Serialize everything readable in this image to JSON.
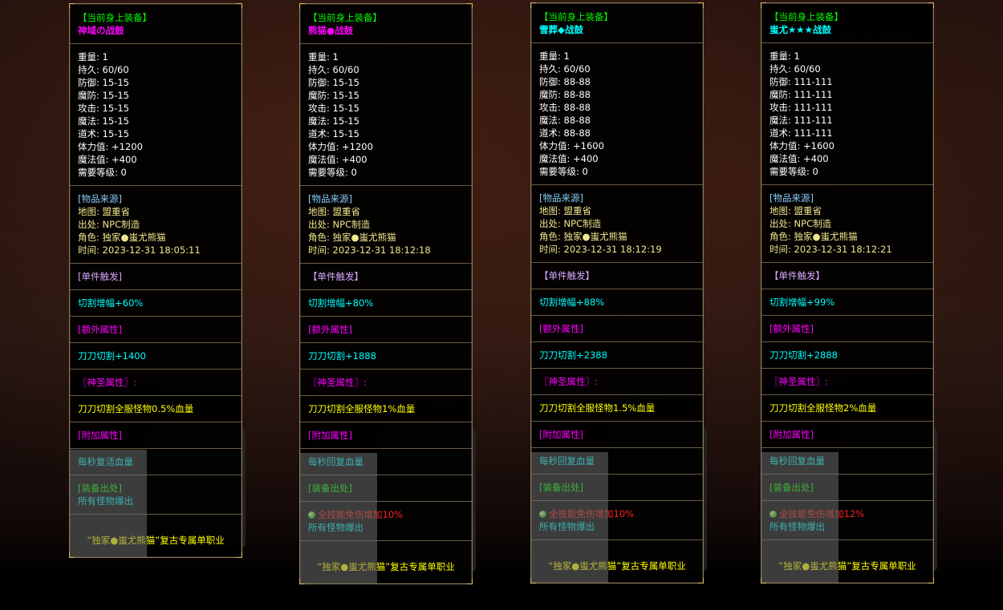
{
  "colors": {
    "white": "#ffffff",
    "green": "#00ff00",
    "magenta": "#ff00ff",
    "cyan": "#00ffff",
    "yellow": "#ffff00",
    "pale_yellow": "#f0e68c",
    "light_blue": "#87cefa",
    "lilac": "#d8a8ff",
    "red": "#ff2020"
  },
  "panels": [
    {
      "header": "【当前身上装备】",
      "title": "神域の战鼓",
      "title_color": "#ff00ff",
      "stats": [
        "重量: 1",
        "持久: 60/60",
        "防御: 15-15",
        "魔防: 15-15",
        "攻击: 15-15",
        "魔法: 15-15",
        "道术: 15-15",
        "体力值: +1200",
        "魔法值: +400",
        "需要等级: 0"
      ],
      "source_header": "[物品来源]",
      "source": [
        "地图: 盟重省",
        "出处: NPC制造",
        "角色: 独家●蚩尤熊猫",
        "时间: 2023-12-31 18:05:11"
      ],
      "trigger_header": "[单件触发]",
      "trigger": "切割增幅+60%",
      "extra_header": "[额外属性]",
      "extra": "刀刀切割+1400",
      "holy_header": "〖神圣属性〗:",
      "holy": "刀刀切割全服怪物0.5%血量",
      "addon_header": "[附加属性]",
      "addon": "每秒复活血量",
      "drop_header": "[装备出处]",
      "drop_bonus": "",
      "drop": "所有怪物爆出",
      "footer": "“独家●蚩尤熊猫”复古专属单职业"
    },
    {
      "header": "【当前身上装备】",
      "title": "熊猫●战鼓",
      "title_color": "#ff00ff",
      "stats": [
        "重量: 1",
        "持久: 60/60",
        "防御: 15-15",
        "魔防: 15-15",
        "攻击: 15-15",
        "魔法: 15-15",
        "道术: 15-15",
        "体力值: +1200",
        "魔法值: +400",
        "需要等级: 0"
      ],
      "source_header": "[物品来源]",
      "source": [
        "地图: 盟重省",
        "出处: NPC制造",
        "角色: 独家●蚩尤熊猫",
        "时间: 2023-12-31 18:12:18"
      ],
      "trigger_header": "【单件触发】",
      "trigger": "切割增幅+80%",
      "extra_header": "[额外属性]",
      "extra": "刀刀切割+1888",
      "holy_header": "〖神圣属性〗:",
      "holy": "刀刀切割全服怪物1%血量",
      "addon_header": "[附加属性]",
      "addon": "每秒回复血量",
      "drop_header": "[装备出处]",
      "drop_bonus": "全技能免伤增加10%",
      "drop": "所有怪物爆出",
      "footer": "“独家●蚩尤熊猫”复古专属单职业"
    },
    {
      "header": "【当前身上装备】",
      "title": "雪葬◆战鼓",
      "title_color": "#00ffff",
      "stats": [
        "重量: 1",
        "持久: 60/60",
        "防御: 88-88",
        "魔防: 88-88",
        "攻击: 88-88",
        "魔法: 88-88",
        "道术: 88-88",
        "体力值: +1600",
        "魔法值: +400",
        "需要等级: 0"
      ],
      "source_header": "[物品来源]",
      "source": [
        "地图: 盟重省",
        "出处: NPC制造",
        "角色: 独家●蚩尤熊猫",
        "时间: 2023-12-31 18:12:19"
      ],
      "trigger_header": "【单件触发】",
      "trigger": "切割增幅+88%",
      "extra_header": "[额外属性]",
      "extra": "刀刀切割+2388",
      "holy_header": "〖神圣属性〗:",
      "holy": "刀刀切割全服怪物1.5%血量",
      "addon_header": "[附加属性]",
      "addon": "每秒回复血量",
      "drop_header": "[装备出处]",
      "drop_bonus": "全技能免伤增加10%",
      "drop": "所有怪物爆出",
      "footer": "“独家●蚩尤熊猫”复古专属单职业"
    },
    {
      "header": "【当前身上装备】",
      "title": "蚩尤★★★战鼓",
      "title_color": "#00ffff",
      "stats": [
        "重量: 1",
        "持久: 60/60",
        "防御: 111-111",
        "魔防: 111-111",
        "攻击: 111-111",
        "魔法: 111-111",
        "道术: 111-111",
        "体力值: +1600",
        "魔法值: +400",
        "需要等级: 0"
      ],
      "source_header": "[物品来源]",
      "source": [
        "地图: 盟重省",
        "出处: NPC制造",
        "角色: 独家●蚩尤熊猫",
        "时间: 2023-12-31 18:12:21"
      ],
      "trigger_header": "【单件触发】",
      "trigger": "切割增幅+99%",
      "extra_header": "[额外属性]",
      "extra": "刀刀切割+2888",
      "holy_header": "〖神圣属性〗:",
      "holy": "刀刀切割全服怪物2%血量",
      "addon_header": "[附加属性]",
      "addon": "每秒回复血量",
      "drop_header": "[装备出处]",
      "drop_bonus": "全技能免伤增加12%",
      "drop": "所有怪物爆出",
      "footer": "“独家●蚩尤熊猫”复古专属单职业"
    }
  ]
}
